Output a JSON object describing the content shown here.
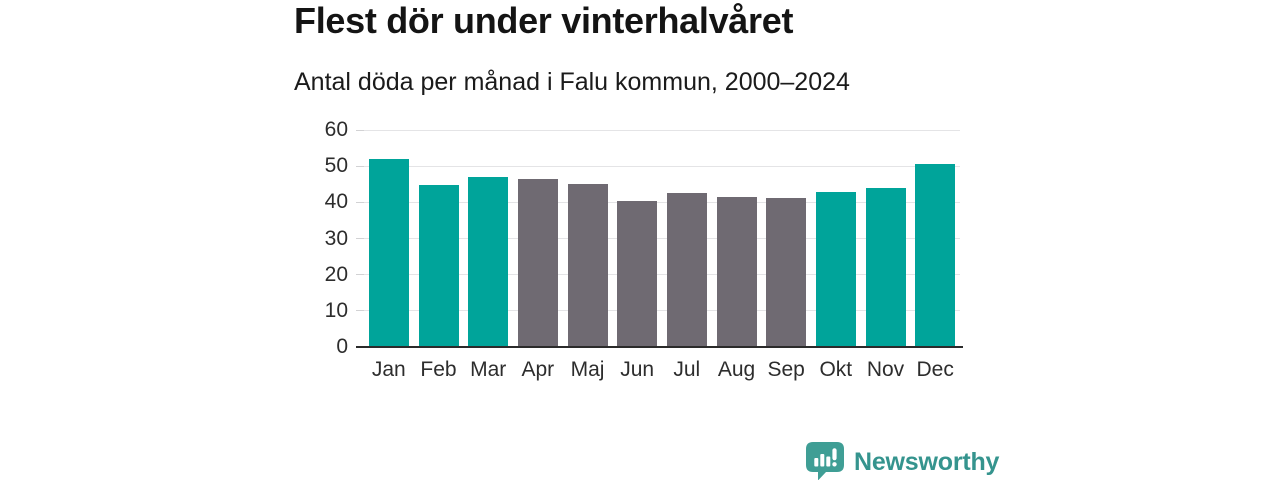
{
  "header": {
    "title": "Flest dör under vinterhalvåret",
    "subtitle": "Antal döda per månad i Falu kommun, 2000–2024"
  },
  "chart_data": {
    "type": "bar",
    "title": "Flest dör under vinterhalvåret",
    "subtitle": "Antal döda per månad i Falu kommun, 2000–2024",
    "categories": [
      "Jan",
      "Feb",
      "Mar",
      "Apr",
      "Maj",
      "Jun",
      "Jul",
      "Aug",
      "Sep",
      "Okt",
      "Nov",
      "Dec"
    ],
    "values": [
      52.1,
      44.9,
      47.1,
      46.5,
      45.2,
      40.4,
      42.6,
      41.5,
      41.1,
      42.9,
      44.0,
      50.6
    ],
    "bar_colors": [
      "teal",
      "teal",
      "teal",
      "gray",
      "gray",
      "gray",
      "gray",
      "gray",
      "gray",
      "teal",
      "teal",
      "teal"
    ],
    "colors": {
      "teal": "#00a49a",
      "gray": "#6f6a72"
    },
    "highlight_meaning": "winter half-year months in teal, summer half-year months in gray",
    "xlabel": "",
    "ylabel": "",
    "ylim": [
      0,
      60
    ],
    "yticks": [
      0,
      10,
      20,
      30,
      40,
      50,
      60
    ],
    "grid": "horizontal",
    "legend": "none",
    "axis_color": "#2b2b2b",
    "gridline_color": "#e4e4e6"
  },
  "footer": {
    "brand": "Newsworthy",
    "brand_color": "#35948e",
    "logo_icon": "bar-chart-speech-bubble-icon",
    "logo_icon_color": "#3f9e95"
  }
}
